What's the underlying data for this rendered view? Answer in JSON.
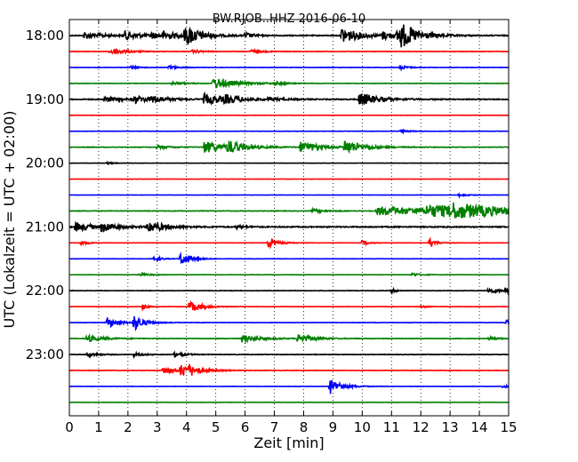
{
  "chart_data": {
    "type": "line",
    "title": "BW.RJOB..HHZ 2016-06-10",
    "xlabel": "Zeit  [min]",
    "ylabel": "UTC (Lokalzeit = UTC + 02:00)",
    "xlim": [
      0,
      15
    ],
    "x_ticks": [
      "0",
      "1",
      "2",
      "3",
      "4",
      "5",
      "6",
      "7",
      "8",
      "9",
      "10",
      "11",
      "12",
      "13",
      "14",
      "15"
    ],
    "y_ticks": [
      "18:00",
      "19:00",
      "20:00",
      "21:00",
      "22:00",
      "23:00"
    ],
    "grid": "vertical dotted at each minute",
    "trace_interval_min": 15,
    "series_colors": [
      "#000000",
      "#ff0000",
      "#0000ff",
      "#008000"
    ],
    "traces": [
      {
        "start": "18:00",
        "noise": 0.5,
        "events": [
          [
            0.5,
            4,
            0.6
          ],
          [
            1.9,
            5,
            0.5
          ],
          [
            2.8,
            3,
            0.4
          ],
          [
            3.2,
            4,
            0.5
          ],
          [
            3.9,
            6,
            0.5
          ],
          [
            4.0,
            6,
            0.5
          ],
          [
            6.0,
            3,
            0.3
          ],
          [
            9.3,
            9,
            0.6
          ],
          [
            10.7,
            4,
            0.4
          ],
          [
            11.2,
            6,
            0.6
          ],
          [
            11.3,
            9,
            0.6
          ]
        ]
      },
      {
        "start": "18:15",
        "noise": 0.25,
        "events": [
          [
            1.4,
            4,
            0.5
          ],
          [
            4.2,
            2,
            0.3
          ],
          [
            6.2,
            2,
            0.4
          ]
        ]
      },
      {
        "start": "18:30",
        "noise": 0.2,
        "events": [
          [
            2.1,
            1.5,
            0.3
          ],
          [
            3.4,
            2,
            0.3
          ],
          [
            11.3,
            2,
            0.3
          ]
        ]
      },
      {
        "start": "18:45",
        "noise": 0.2,
        "events": [
          [
            4.9,
            6,
            0.8
          ],
          [
            3.5,
            2,
            0.4
          ],
          [
            7.0,
            2,
            0.3
          ]
        ]
      },
      {
        "start": "19:00",
        "noise": 0.5,
        "events": [
          [
            1.2,
            3,
            0.5
          ],
          [
            2.2,
            4,
            0.6
          ],
          [
            2.8,
            3,
            0.5
          ],
          [
            4.6,
            6,
            0.8
          ],
          [
            5.3,
            3,
            0.5
          ],
          [
            6.8,
            2,
            0.4
          ],
          [
            9.9,
            8,
            0.6
          ]
        ]
      },
      {
        "start": "19:15",
        "noise": 0.15,
        "events": []
      },
      {
        "start": "19:30",
        "noise": 0.15,
        "events": [
          [
            11.3,
            1.5,
            0.3
          ]
        ]
      },
      {
        "start": "19:45",
        "noise": 0.3,
        "events": [
          [
            4.6,
            7,
            0.7
          ],
          [
            5.4,
            6,
            0.6
          ],
          [
            7.9,
            7,
            0.6
          ],
          [
            9.4,
            8,
            0.6
          ],
          [
            3.0,
            2,
            0.4
          ]
        ]
      },
      {
        "start": "20:00",
        "noise": 0.12,
        "events": [
          [
            1.3,
            1.5,
            0.2
          ]
        ]
      },
      {
        "start": "20:15",
        "noise": 0.12,
        "events": []
      },
      {
        "start": "20:30",
        "noise": 0.12,
        "events": [
          [
            13.3,
            1.5,
            0.3
          ]
        ]
      },
      {
        "start": "20:45",
        "noise": 0.3,
        "events": [
          [
            10.5,
            5,
            2.5
          ],
          [
            12.2,
            5,
            2.5
          ],
          [
            13.0,
            5,
            1.5
          ],
          [
            8.3,
            2,
            0.4
          ]
        ]
      },
      {
        "start": "21:00",
        "noise": 0.6,
        "events": [
          [
            0.2,
            5,
            0.6
          ],
          [
            1.1,
            5,
            0.5
          ],
          [
            2.7,
            7,
            0.5
          ],
          [
            5.7,
            2,
            0.3
          ]
        ]
      },
      {
        "start": "21:15",
        "noise": 0.12,
        "events": [
          [
            0.4,
            3,
            0.2
          ],
          [
            6.8,
            6,
            0.3
          ],
          [
            10.0,
            3,
            0.2
          ],
          [
            12.3,
            6,
            0.2
          ]
        ]
      },
      {
        "start": "21:30",
        "noise": 0.15,
        "events": [
          [
            2.9,
            4,
            0.2
          ],
          [
            3.8,
            8,
            0.3
          ]
        ]
      },
      {
        "start": "21:45",
        "noise": 0.15,
        "events": [
          [
            2.4,
            2,
            0.3
          ],
          [
            11.7,
            2,
            0.3
          ]
        ]
      },
      {
        "start": "22:00",
        "noise": 0.25,
        "events": [
          [
            11.0,
            2,
            0.2
          ],
          [
            14.3,
            3,
            0.4
          ],
          [
            14.9,
            3,
            0.3
          ]
        ]
      },
      {
        "start": "22:15",
        "noise": 0.15,
        "events": [
          [
            2.5,
            3,
            0.2
          ],
          [
            4.1,
            7,
            0.4
          ],
          [
            12.0,
            1.5,
            0.2
          ]
        ]
      },
      {
        "start": "22:30",
        "noise": 0.2,
        "events": [
          [
            1.3,
            6,
            0.4
          ],
          [
            2.2,
            9,
            0.3
          ],
          [
            14.9,
            3,
            0.3
          ]
        ]
      },
      {
        "start": "22:45",
        "noise": 0.3,
        "events": [
          [
            0.6,
            4,
            0.5
          ],
          [
            5.9,
            4,
            0.6
          ],
          [
            7.8,
            5,
            0.5
          ],
          [
            14.3,
            2,
            0.3
          ]
        ]
      },
      {
        "start": "23:00",
        "noise": 0.3,
        "events": [
          [
            0.6,
            3,
            0.3
          ],
          [
            2.2,
            2,
            0.3
          ],
          [
            3.6,
            3,
            0.3
          ]
        ]
      },
      {
        "start": "23:15",
        "noise": 0.25,
        "events": [
          [
            3.2,
            4,
            0.4
          ],
          [
            3.8,
            7,
            0.5
          ],
          [
            4.1,
            3,
            0.3
          ]
        ]
      },
      {
        "start": "23:30",
        "noise": 0.15,
        "events": [
          [
            8.9,
            9,
            0.4
          ],
          [
            14.8,
            2,
            0.2
          ]
        ]
      },
      {
        "start": "23:45",
        "noise": 0.12,
        "events": []
      }
    ]
  }
}
